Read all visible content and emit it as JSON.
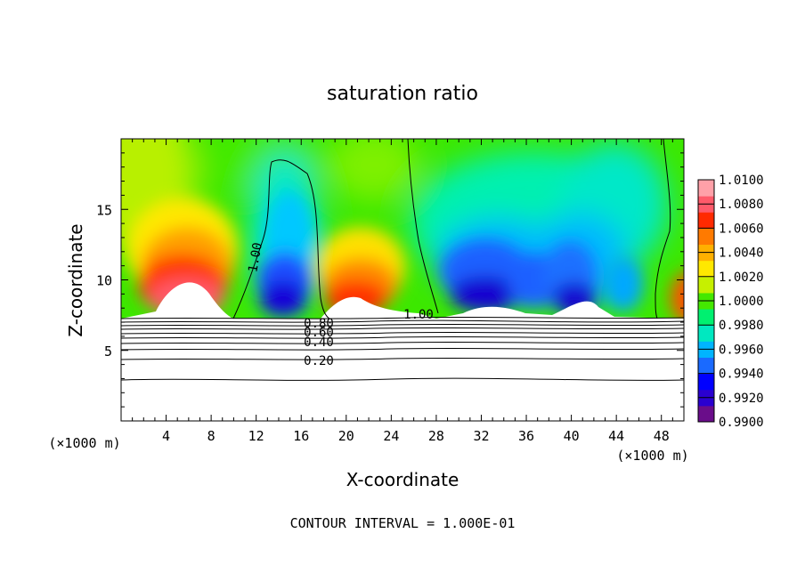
{
  "chart_data": {
    "type": "heatmap",
    "title": "saturation ratio",
    "xlabel": "X-coordinate",
    "ylabel": "Z-coordinate",
    "x_unit": "(×1000 m)",
    "x_ticks": [
      4,
      8,
      12,
      16,
      20,
      24,
      28,
      32,
      36,
      40,
      44,
      48
    ],
    "y_ticks": [
      5,
      10,
      15
    ],
    "xlim": [
      0,
      50
    ],
    "ylim": [
      0,
      20
    ],
    "footer": "CONTOUR INTERVAL = 1.000E-01",
    "colorbar": {
      "labels": [
        "1.0100",
        "1.0080",
        "1.0060",
        "1.0040",
        "1.0020",
        "1.0000",
        "0.9980",
        "0.9960",
        "0.9940",
        "0.9920",
        "0.9900"
      ],
      "min": 0.99,
      "max": 1.01,
      "colors": [
        "#6a0d8a",
        "#2a00d0",
        "#0000ff",
        "#1a6aff",
        "#00b4ff",
        "#00e8c0",
        "#00f070",
        "#44e800",
        "#c6f000",
        "#ffe800",
        "#ffb000",
        "#ff7a00",
        "#ff2a00",
        "#ff5a6a",
        "#ffa0a8"
      ]
    },
    "contour_labels": [
      "1.00",
      "1.00",
      "0.80",
      "0.60",
      "0.40",
      "0.20"
    ],
    "field_summary": {
      "low_region": "z < ~7.5: white with black contour lines (values 0.20 – 0.80)",
      "peaks": [
        {
          "x": 6,
          "z": 10.5,
          "value": 1.008
        },
        {
          "x": 21,
          "z": 9.5,
          "value": 1.007
        },
        {
          "x": 49,
          "z": 8.0,
          "value": 1.006
        }
      ],
      "troughs": [
        {
          "x": 14,
          "z": 9.0,
          "value": 0.991
        },
        {
          "x": 32,
          "z": 9.0,
          "value": 0.991
        },
        {
          "x": 40,
          "z": 9.0,
          "value": 0.992
        }
      ]
    }
  }
}
